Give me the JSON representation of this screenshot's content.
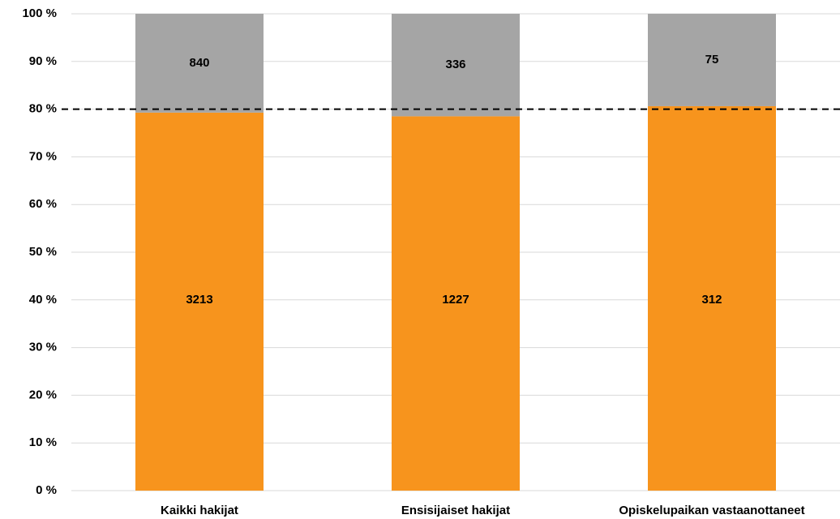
{
  "chart_data": {
    "type": "stacked-percent-bar",
    "categories": [
      "Kaikki hakijat",
      "Ensisijaiset hakijat",
      "Opiskelupaikan vastaanottaneet"
    ],
    "series": [
      {
        "color": "#f7941d",
        "values": [
          3213,
          1227,
          312
        ]
      },
      {
        "color": "#a5a5a5",
        "values": [
          840,
          336,
          75
        ]
      }
    ],
    "ylim": [
      0,
      100
    ],
    "yticks": [
      {
        "value": 0,
        "label": "0 %"
      },
      {
        "value": 10,
        "label": "10 %"
      },
      {
        "value": 20,
        "label": "20 %"
      },
      {
        "value": 30,
        "label": "30 %"
      },
      {
        "value": 40,
        "label": "40 %"
      },
      {
        "value": 50,
        "label": "50 %"
      },
      {
        "value": 60,
        "label": "60 %"
      },
      {
        "value": 70,
        "label": "70 %"
      },
      {
        "value": 80,
        "label": "80 %"
      },
      {
        "value": 90,
        "label": "90 %"
      },
      {
        "value": 100,
        "label": "100 %"
      }
    ],
    "grid": true,
    "reference_line": 80
  }
}
